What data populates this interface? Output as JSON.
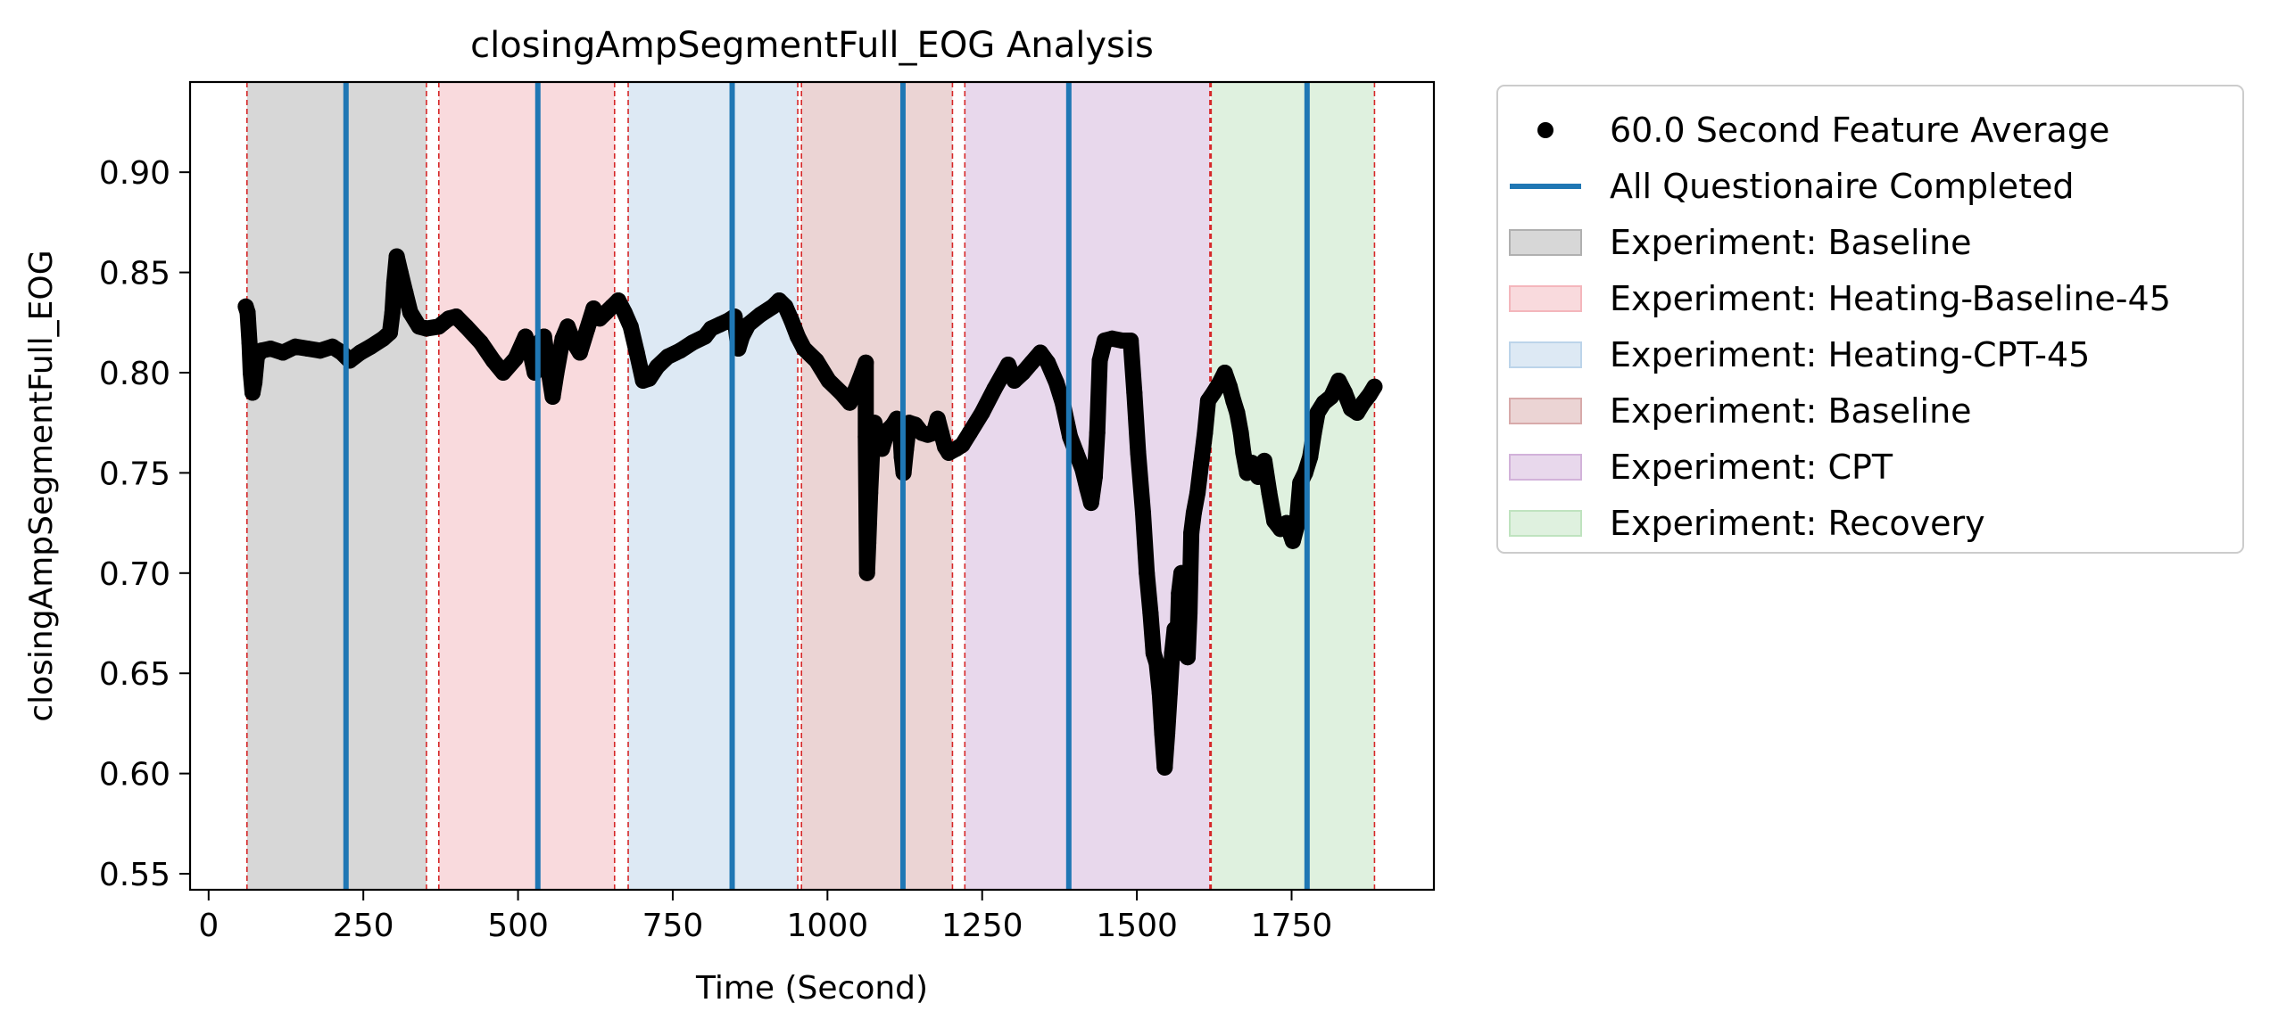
{
  "chart_data": {
    "type": "scatter",
    "title": "closingAmpSegmentFull_EOG Analysis",
    "xlabel": "Time (Second)",
    "ylabel": "closingAmpSegmentFull_EOG",
    "xlim": [
      -30,
      1980
    ],
    "ylim": [
      0.542,
      0.945
    ],
    "x_ticks": [
      0,
      250,
      500,
      750,
      1000,
      1250,
      1500,
      1750
    ],
    "y_ticks": [
      0.55,
      0.6,
      0.65,
      0.7,
      0.75,
      0.8,
      0.85,
      0.9
    ],
    "y_tick_labels": [
      "0.55",
      "0.60",
      "0.65",
      "0.70",
      "0.75",
      "0.80",
      "0.85",
      "0.90"
    ],
    "grid": false,
    "legend_position": "outside right, top",
    "legend": [
      {
        "label": "60.0 Second Feature Average",
        "kind": "marker",
        "color": "#000000"
      },
      {
        "label": "All Questionaire Completed",
        "kind": "line",
        "color": "#1f77b4"
      },
      {
        "label": "Experiment: Baseline",
        "kind": "patch",
        "color": "#b0b0b0"
      },
      {
        "label": "Experiment: Heating-Baseline-45",
        "kind": "patch",
        "color": "#f4b6bc"
      },
      {
        "label": "Experiment: Heating-CPT-45",
        "kind": "patch",
        "color": "#bcd4ea"
      },
      {
        "label": "Experiment: Baseline",
        "kind": "patch",
        "color": "#d8aaaa"
      },
      {
        "label": "Experiment: CPT",
        "kind": "patch",
        "color": "#d2b2da"
      },
      {
        "label": "Experiment: Recovery",
        "kind": "patch",
        "color": "#bfe3bf"
      }
    ],
    "regions": [
      {
        "name": "Experiment: Baseline",
        "x0": 62,
        "x1": 352,
        "color": "#b0b0b0"
      },
      {
        "name": "Experiment: Heating-Baseline-45",
        "x0": 372,
        "x1": 656,
        "color": "#f4b6bc"
      },
      {
        "name": "Experiment: Heating-CPT-45",
        "x0": 678,
        "x1": 952,
        "color": "#bcd4ea"
      },
      {
        "name": "Experiment: Baseline",
        "x0": 958,
        "x1": 1202,
        "color": "#d8aaaa"
      },
      {
        "name": "Experiment: CPT",
        "x0": 1222,
        "x1": 1618,
        "color": "#d2b2da"
      },
      {
        "name": "Experiment: Recovery",
        "x0": 1620,
        "x1": 1884,
        "color": "#bfe3bf"
      }
    ],
    "boundary_lines": [
      62,
      352,
      372,
      656,
      678,
      952,
      958,
      1202,
      1222,
      1618,
      1620,
      1884
    ],
    "questionnaire_lines": [
      222,
      532,
      846,
      1122,
      1390,
      1775
    ],
    "series": [
      {
        "name": "60.0 Second Feature Average",
        "color": "#000000",
        "points": [
          [
            60,
            0.833
          ],
          [
            63,
            0.83
          ],
          [
            66,
            0.815
          ],
          [
            68,
            0.8
          ],
          [
            71,
            0.79
          ],
          [
            74,
            0.795
          ],
          [
            78,
            0.808
          ],
          [
            85,
            0.811
          ],
          [
            100,
            0.812
          ],
          [
            120,
            0.81
          ],
          [
            140,
            0.813
          ],
          [
            160,
            0.812
          ],
          [
            180,
            0.811
          ],
          [
            200,
            0.813
          ],
          [
            215,
            0.81
          ],
          [
            228,
            0.806
          ],
          [
            245,
            0.81
          ],
          [
            262,
            0.813
          ],
          [
            282,
            0.817
          ],
          [
            293,
            0.82
          ],
          [
            297,
            0.83
          ],
          [
            300,
            0.845
          ],
          [
            304,
            0.858
          ],
          [
            310,
            0.85
          ],
          [
            318,
            0.84
          ],
          [
            326,
            0.83
          ],
          [
            340,
            0.823
          ],
          [
            352,
            0.822
          ],
          [
            372,
            0.823
          ],
          [
            388,
            0.827
          ],
          [
            400,
            0.828
          ],
          [
            416,
            0.823
          ],
          [
            440,
            0.815
          ],
          [
            460,
            0.806
          ],
          [
            476,
            0.8
          ],
          [
            496,
            0.807
          ],
          [
            512,
            0.818
          ],
          [
            520,
            0.81
          ],
          [
            527,
            0.8
          ],
          [
            534,
            0.815
          ],
          [
            542,
            0.818
          ],
          [
            550,
            0.8
          ],
          [
            556,
            0.788
          ],
          [
            562,
            0.8
          ],
          [
            572,
            0.817
          ],
          [
            580,
            0.823
          ],
          [
            590,
            0.815
          ],
          [
            600,
            0.81
          ],
          [
            612,
            0.822
          ],
          [
            622,
            0.832
          ],
          [
            632,
            0.827
          ],
          [
            642,
            0.83
          ],
          [
            652,
            0.833
          ],
          [
            662,
            0.836
          ],
          [
            672,
            0.83
          ],
          [
            682,
            0.823
          ],
          [
            692,
            0.81
          ],
          [
            702,
            0.796
          ],
          [
            712,
            0.797
          ],
          [
            725,
            0.803
          ],
          [
            742,
            0.808
          ],
          [
            762,
            0.811
          ],
          [
            782,
            0.815
          ],
          [
            802,
            0.818
          ],
          [
            812,
            0.822
          ],
          [
            826,
            0.824
          ],
          [
            840,
            0.826
          ],
          [
            850,
            0.828
          ],
          [
            856,
            0.812
          ],
          [
            862,
            0.818
          ],
          [
            872,
            0.824
          ],
          [
            892,
            0.829
          ],
          [
            912,
            0.833
          ],
          [
            922,
            0.836
          ],
          [
            932,
            0.833
          ],
          [
            942,
            0.826
          ],
          [
            952,
            0.818
          ],
          [
            962,
            0.812
          ],
          [
            982,
            0.806
          ],
          [
            1002,
            0.796
          ],
          [
            1022,
            0.79
          ],
          [
            1036,
            0.785
          ],
          [
            1046,
            0.792
          ],
          [
            1056,
            0.8
          ],
          [
            1062,
            0.805
          ],
          [
            1062,
            0.768
          ],
          [
            1064,
            0.7
          ],
          [
            1066,
            0.715
          ],
          [
            1069,
            0.74
          ],
          [
            1072,
            0.76
          ],
          [
            1076,
            0.775
          ],
          [
            1082,
            0.768
          ],
          [
            1088,
            0.762
          ],
          [
            1094,
            0.768
          ],
          [
            1100,
            0.772
          ],
          [
            1106,
            0.774
          ],
          [
            1112,
            0.777
          ],
          [
            1117,
            0.775
          ],
          [
            1120,
            0.758
          ],
          [
            1123,
            0.75
          ],
          [
            1127,
            0.762
          ],
          [
            1132,
            0.775
          ],
          [
            1142,
            0.774
          ],
          [
            1152,
            0.77
          ],
          [
            1162,
            0.769
          ],
          [
            1172,
            0.77
          ],
          [
            1178,
            0.777
          ],
          [
            1184,
            0.77
          ],
          [
            1190,
            0.763
          ],
          [
            1196,
            0.76
          ],
          [
            1208,
            0.762
          ],
          [
            1218,
            0.764
          ],
          [
            1230,
            0.77
          ],
          [
            1250,
            0.78
          ],
          [
            1270,
            0.792
          ],
          [
            1292,
            0.804
          ],
          [
            1302,
            0.796
          ],
          [
            1316,
            0.8
          ],
          [
            1330,
            0.805
          ],
          [
            1344,
            0.81
          ],
          [
            1356,
            0.805
          ],
          [
            1370,
            0.795
          ],
          [
            1380,
            0.785
          ],
          [
            1392,
            0.768
          ],
          [
            1402,
            0.76
          ],
          [
            1412,
            0.752
          ],
          [
            1420,
            0.742
          ],
          [
            1426,
            0.735
          ],
          [
            1432,
            0.748
          ],
          [
            1436,
            0.77
          ],
          [
            1440,
            0.806
          ],
          [
            1448,
            0.816
          ],
          [
            1460,
            0.817
          ],
          [
            1476,
            0.816
          ],
          [
            1490,
            0.816
          ],
          [
            1496,
            0.79
          ],
          [
            1502,
            0.76
          ],
          [
            1510,
            0.73
          ],
          [
            1516,
            0.7
          ],
          [
            1522,
            0.68
          ],
          [
            1527,
            0.66
          ],
          [
            1532,
            0.655
          ],
          [
            1537,
            0.64
          ],
          [
            1541,
            0.62
          ],
          [
            1545,
            0.603
          ],
          [
            1549,
            0.62
          ],
          [
            1553,
            0.64
          ],
          [
            1557,
            0.66
          ],
          [
            1561,
            0.672
          ],
          [
            1565,
            0.66
          ],
          [
            1568,
            0.69
          ],
          [
            1572,
            0.7
          ],
          [
            1576,
            0.685
          ],
          [
            1580,
            0.67
          ],
          [
            1582,
            0.658
          ],
          [
            1585,
            0.68
          ],
          [
            1588,
            0.72
          ],
          [
            1592,
            0.73
          ],
          [
            1598,
            0.74
          ],
          [
            1604,
            0.755
          ],
          [
            1610,
            0.77
          ],
          [
            1615,
            0.786
          ],
          [
            1624,
            0.79
          ],
          [
            1634,
            0.795
          ],
          [
            1642,
            0.8
          ],
          [
            1650,
            0.793
          ],
          [
            1656,
            0.786
          ],
          [
            1662,
            0.78
          ],
          [
            1668,
            0.77
          ],
          [
            1672,
            0.76
          ],
          [
            1678,
            0.75
          ],
          [
            1686,
            0.755
          ],
          [
            1696,
            0.748
          ],
          [
            1706,
            0.756
          ],
          [
            1714,
            0.74
          ],
          [
            1722,
            0.726
          ],
          [
            1732,
            0.722
          ],
          [
            1742,
            0.725
          ],
          [
            1752,
            0.716
          ],
          [
            1758,
            0.723
          ],
          [
            1764,
            0.745
          ],
          [
            1772,
            0.75
          ],
          [
            1780,
            0.758
          ],
          [
            1786,
            0.77
          ],
          [
            1792,
            0.78
          ],
          [
            1802,
            0.785
          ],
          [
            1814,
            0.788
          ],
          [
            1826,
            0.796
          ],
          [
            1836,
            0.79
          ],
          [
            1846,
            0.782
          ],
          [
            1856,
            0.78
          ],
          [
            1866,
            0.785
          ],
          [
            1876,
            0.789
          ],
          [
            1884,
            0.793
          ]
        ]
      }
    ]
  }
}
